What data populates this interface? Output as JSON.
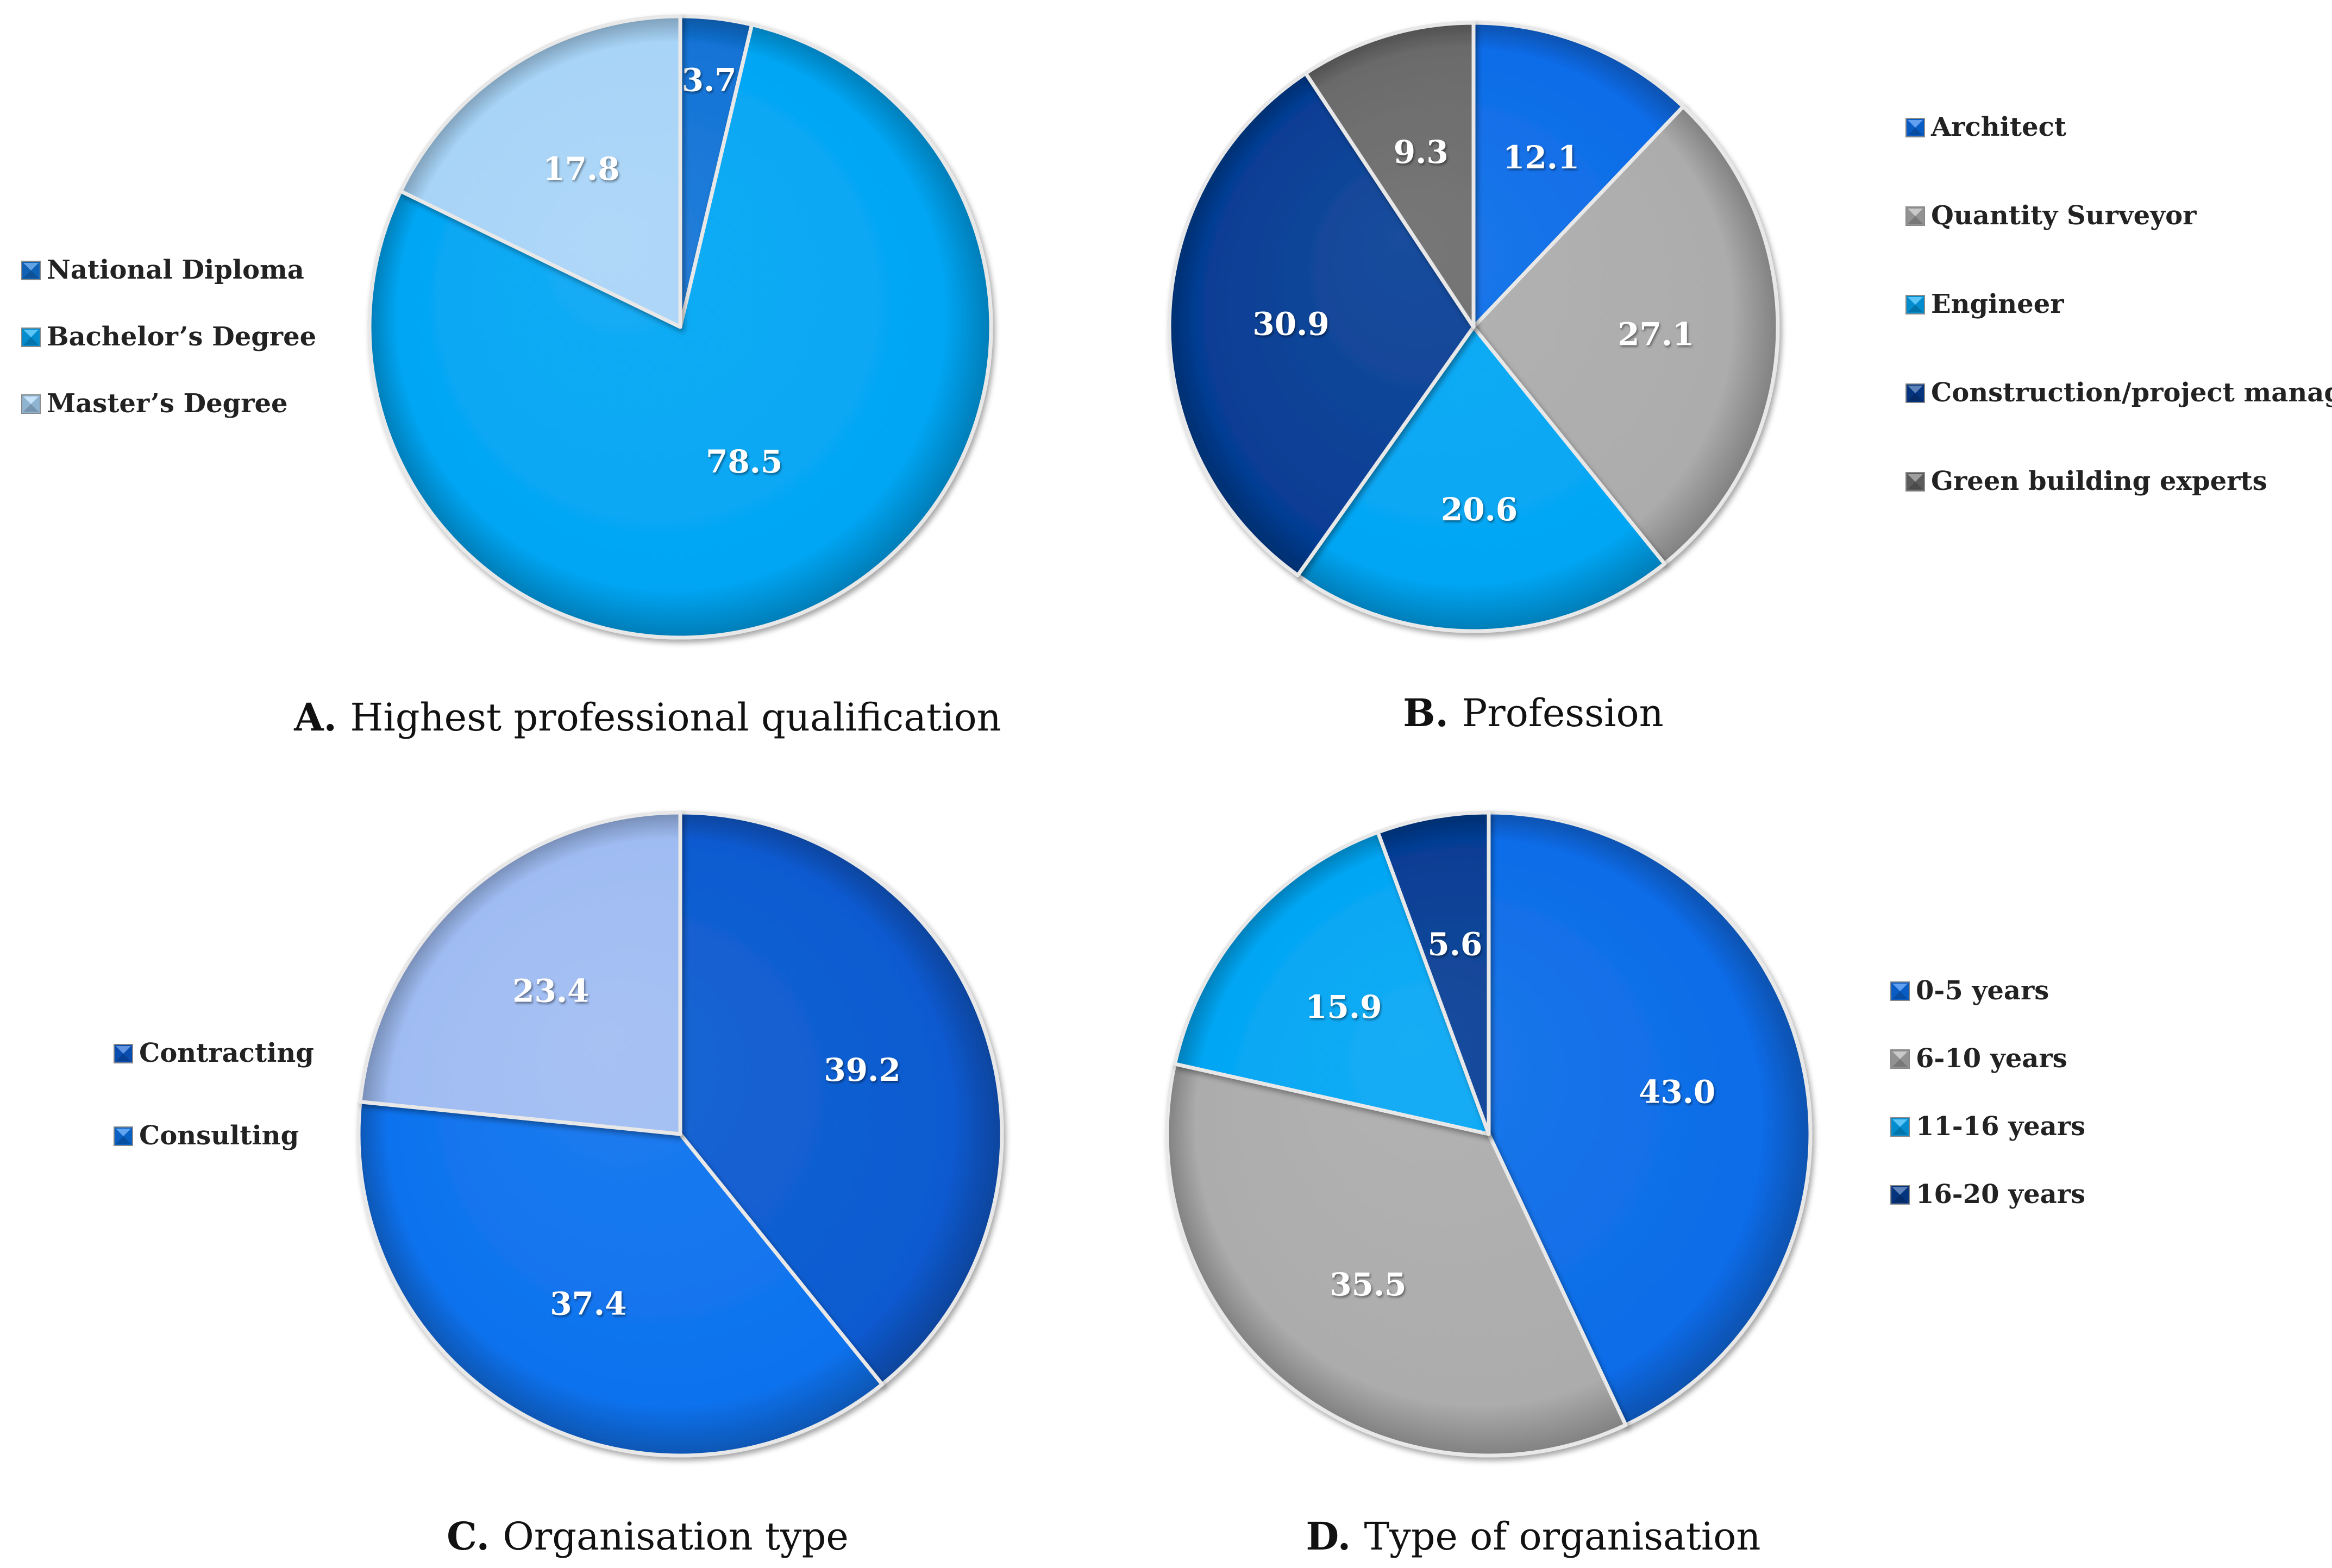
{
  "chart_data": [
    {
      "id": "A",
      "type": "pie",
      "caption_letter": "A.",
      "caption_text": "Highest professional qualification",
      "legend_position": "left",
      "slices": [
        {
          "label": "National Diploma",
          "value": 3.7,
          "value_text": "3.7",
          "color": "#1273d6"
        },
        {
          "label": "Bachelor’s Degree",
          "value": 78.5,
          "value_text": "78.5",
          "color": "#03a6f4"
        },
        {
          "label": "Master’s Degree",
          "value": 17.8,
          "value_text": "17.8",
          "color": "#a8d4f7"
        }
      ]
    },
    {
      "id": "B",
      "type": "pie",
      "caption_letter": "B.",
      "caption_text": "Profession",
      "legend_position": "right",
      "slices": [
        {
          "label": "Architect",
          "value": 12.1,
          "value_text": "12.1",
          "color": "#0c6ce8"
        },
        {
          "label": "Quantity Surveyor",
          "value": 27.1,
          "value_text": "27.1",
          "color": "#acacac"
        },
        {
          "label": "Engineer",
          "value": 20.6,
          "value_text": "20.6",
          "color": "#03a6f4"
        },
        {
          "label": "Construction/project manager",
          "value": 30.9,
          "value_text": "30.9",
          "color": "#063d94"
        },
        {
          "label": "Green building experts",
          "value": 9.3,
          "value_text": "9.3",
          "color": "#6b6b6b"
        }
      ]
    },
    {
      "id": "C",
      "type": "pie",
      "caption_letter": "C.",
      "caption_text": "Organisation type",
      "legend_position": "left",
      "legend_items": [
        "Contracting",
        "Consulting"
      ],
      "legend_colors": [
        "#0a5bd0",
        "#0a72e6"
      ],
      "slices": [
        {
          "label": "Contracting",
          "value": 39.2,
          "value_text": "39.2",
          "color": "#0a5ad0"
        },
        {
          "label": "Consulting",
          "value": 37.4,
          "value_text": "37.4",
          "color": "#0d72ee"
        },
        {
          "label": "",
          "value": 23.4,
          "value_text": "23.4",
          "color": "#9fbcf2"
        }
      ]
    },
    {
      "id": "D",
      "type": "pie",
      "caption_letter": "D.",
      "caption_text": "Type of organisation",
      "legend_position": "right",
      "slices": [
        {
          "label": "0-5 years",
          "value": 43.0,
          "value_text": "43.0",
          "color": "#0c6ce8"
        },
        {
          "label": "6-10 years",
          "value": 35.5,
          "value_text": "35.5",
          "color": "#acacac"
        },
        {
          "label": "11-16 years",
          "value": 15.9,
          "value_text": "15.9",
          "color": "#03a6f4"
        },
        {
          "label": "16-20 years",
          "value": 5.6,
          "value_text": "5.6",
          "color": "#063d94"
        }
      ]
    }
  ]
}
